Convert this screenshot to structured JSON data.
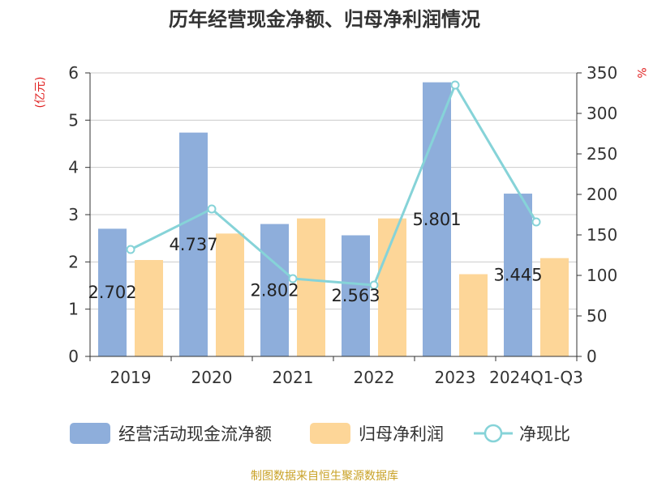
{
  "chart_data": {
    "type": "bar",
    "title": "历年经营现金净额、归母净利润情况",
    "categories": [
      "2019",
      "2020",
      "2021",
      "2022",
      "2023",
      "2024Q1-Q3"
    ],
    "y_left_unit": "(亿元)",
    "y_right_unit": "%",
    "ylim_left": [
      0,
      6
    ],
    "ylim_right": [
      0,
      350
    ],
    "yticks_left": [
      "0",
      "1",
      "2",
      "3",
      "4",
      "5",
      "6"
    ],
    "yticks_right": [
      "0",
      "50",
      "100",
      "150",
      "200",
      "250",
      "300",
      "350"
    ],
    "grid": "horizontal",
    "legend_position": "bottom",
    "series": [
      {
        "name": "经营活动现金流净额",
        "type": "bar",
        "axis": "left",
        "color": "#8eaedb",
        "values": [
          2.702,
          4.737,
          2.802,
          2.563,
          5.801,
          3.445
        ],
        "labels": [
          "2.702",
          "4.737",
          "2.802",
          "2.563",
          "5.801",
          "3.445"
        ]
      },
      {
        "name": "归母净利润",
        "type": "bar",
        "axis": "left",
        "color": "#fdd698",
        "values": [
          2.04,
          2.6,
          2.92,
          2.92,
          1.74,
          2.08
        ]
      },
      {
        "name": "净现比",
        "type": "line",
        "axis": "right",
        "color": "#86d3d8",
        "values": [
          132,
          182,
          96,
          88,
          335,
          166
        ]
      }
    ],
    "source": "制图数据来自恒生聚源数据库"
  }
}
